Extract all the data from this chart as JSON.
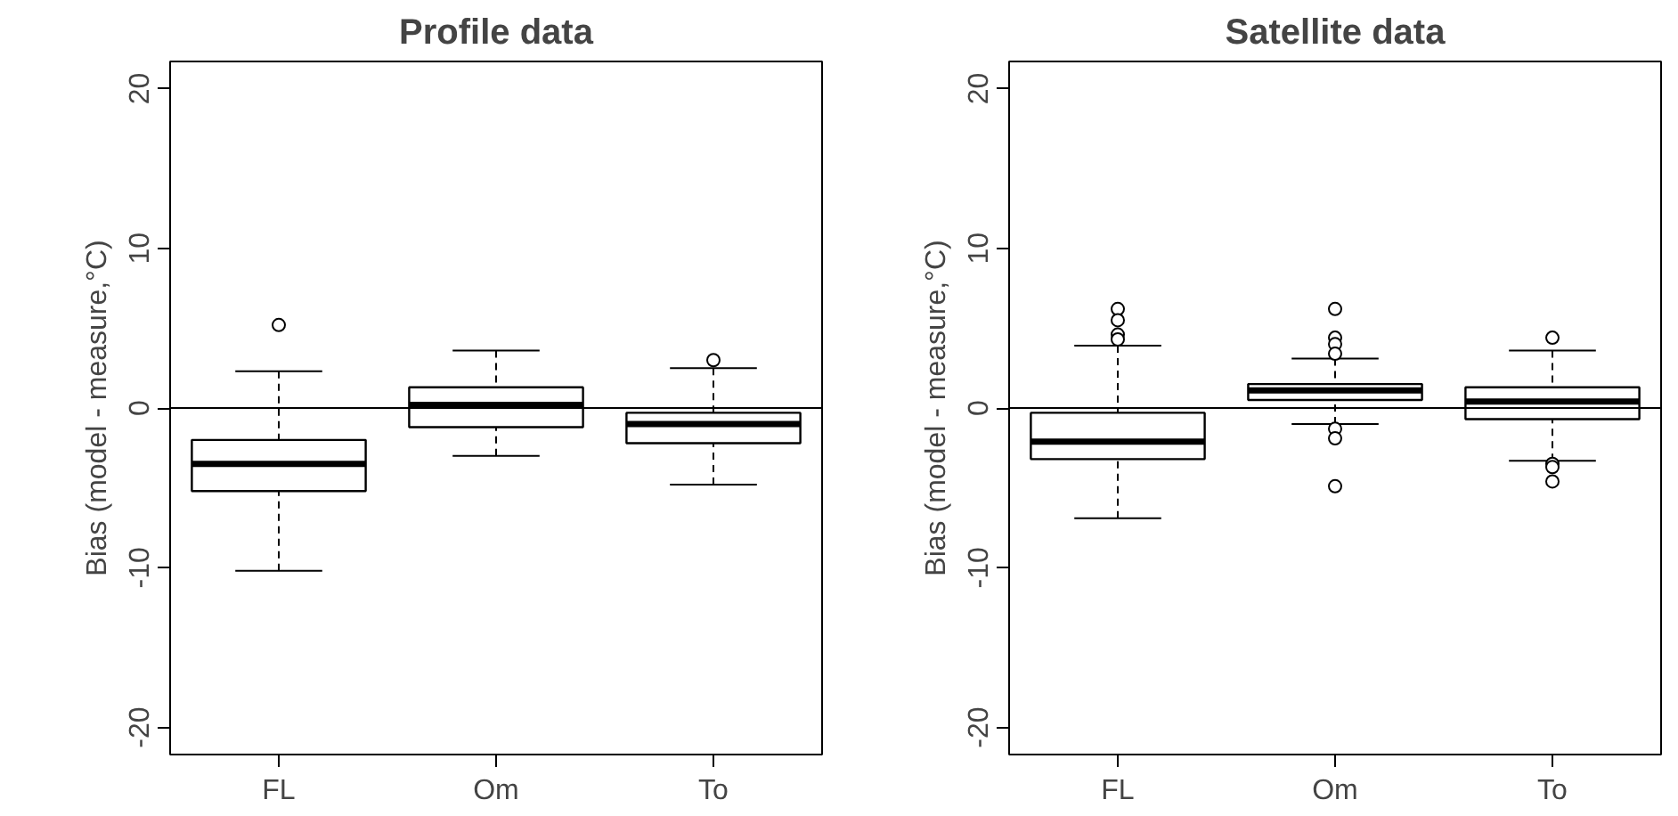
{
  "chart_data": [
    {
      "type": "box",
      "title": "Profile data",
      "ylabel": "Bias (model - measure,°C)",
      "categories": [
        "FL",
        "Om",
        "To"
      ],
      "ylim": [
        -21.7,
        21.7
      ],
      "yticks": [
        -20,
        -10,
        0,
        10,
        20
      ],
      "ref_lines": [
        {
          "axis": "y",
          "value": 0
        }
      ],
      "boxes": [
        {
          "low": -10.2,
          "q1": -5.2,
          "median": -3.5,
          "q3": -2.0,
          "high": 2.3,
          "outliers": [
            5.2
          ]
        },
        {
          "low": -3.0,
          "q1": -1.2,
          "median": 0.2,
          "q3": 1.3,
          "high": 3.6
        },
        {
          "low": -4.8,
          "q1": -2.2,
          "median": -1.0,
          "q3": -0.3,
          "high": 2.5,
          "outliers": [
            3.0
          ]
        }
      ]
    },
    {
      "type": "box",
      "title": "Satellite data",
      "ylabel": "Bias (model - measure,°C)",
      "categories": [
        "FL",
        "Om",
        "To"
      ],
      "ylim": [
        -21.7,
        21.7
      ],
      "yticks": [
        -20,
        -10,
        0,
        10,
        20
      ],
      "ref_lines": [
        {
          "axis": "y",
          "value": 0
        }
      ],
      "boxes": [
        {
          "low": -6.9,
          "q1": -3.2,
          "median": -2.1,
          "q3": -0.3,
          "high": 3.9,
          "outliers": [
            6.2,
            5.5,
            4.6,
            4.3
          ]
        },
        {
          "low": -1.0,
          "q1": 0.5,
          "median": 1.1,
          "q3": 1.5,
          "high": 3.1,
          "outliers": [
            6.2,
            4.4,
            4.0,
            3.4,
            -1.3,
            -1.9,
            -4.9
          ]
        },
        {
          "low": -3.3,
          "q1": -0.7,
          "median": 0.4,
          "q3": 1.3,
          "high": 3.6,
          "outliers": [
            4.4,
            -3.5,
            -3.7,
            -4.6
          ]
        }
      ]
    }
  ]
}
